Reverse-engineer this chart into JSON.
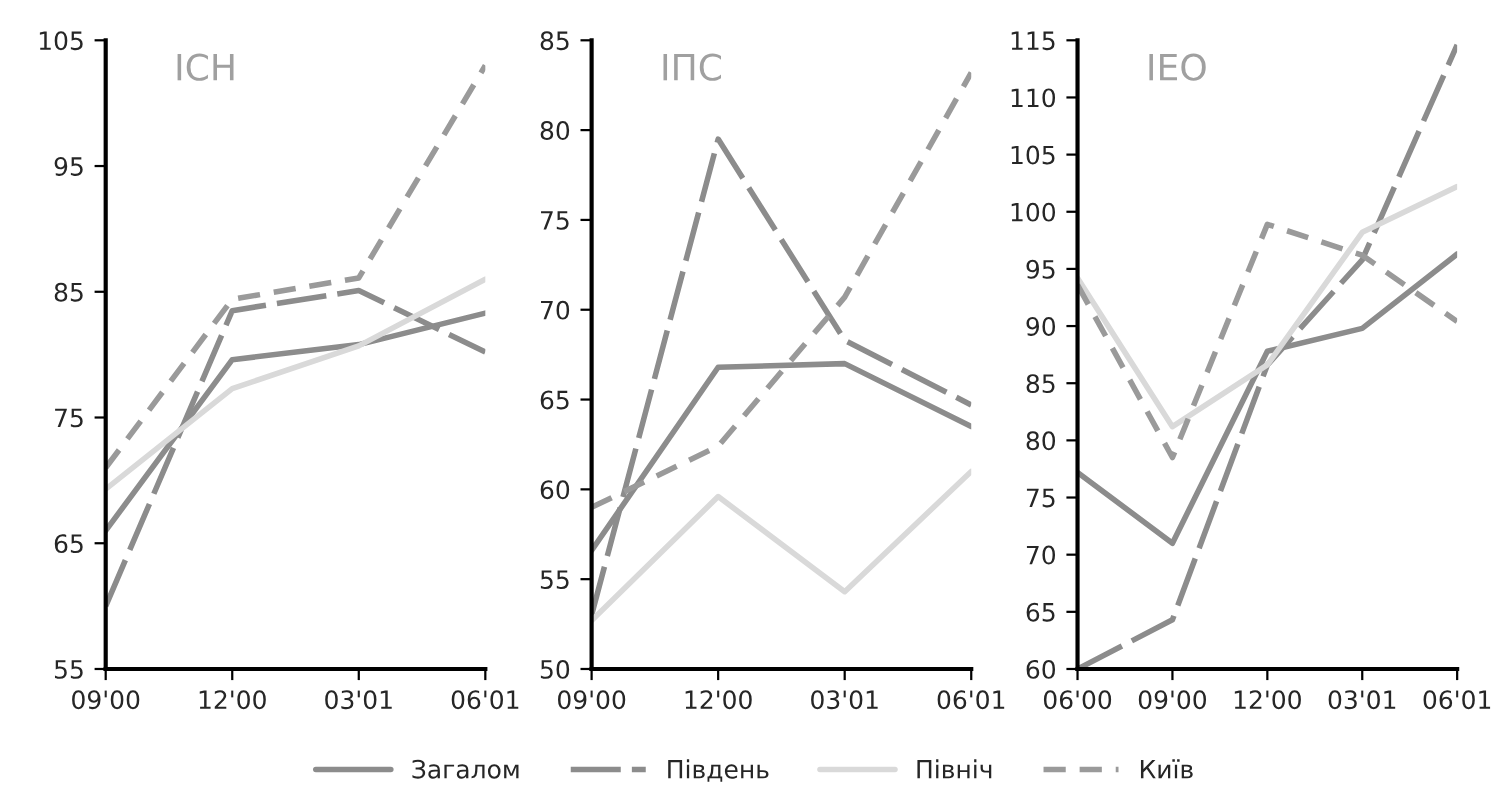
{
  "chart_data": [
    {
      "type": "line",
      "title": "ІСН",
      "categories": [
        "09'00",
        "12'00",
        "03'01",
        "06'01"
      ],
      "ylim": [
        55,
        105
      ],
      "yticks": [
        55,
        65,
        75,
        85,
        95,
        105
      ],
      "grid": false,
      "legend": "bottom",
      "series": [
        {
          "name": "Загалом",
          "color": "#8c8c8c",
          "line_style": "solid",
          "values": [
            66,
            79.6,
            80.8,
            83.3
          ]
        },
        {
          "name": "Південь",
          "color": "#8c8c8c",
          "line_style": "longdash",
          "values": [
            60,
            83.5,
            85.1,
            80.2
          ]
        },
        {
          "name": "Північ",
          "color": "#d9d9d9",
          "line_style": "solid",
          "values": [
            69.3,
            77.3,
            80.7,
            86
          ]
        },
        {
          "name": "Київ",
          "color": "#9a9a9a",
          "line_style": "dashed",
          "values": [
            71,
            84.4,
            86.1,
            103
          ]
        }
      ]
    },
    {
      "type": "line",
      "title": "ІПС",
      "categories": [
        "09'00",
        "12'00",
        "03'01",
        "06'01"
      ],
      "ylim": [
        50,
        85
      ],
      "yticks": [
        50,
        55,
        60,
        65,
        70,
        75,
        80,
        85
      ],
      "grid": false,
      "legend": "bottom",
      "series": [
        {
          "name": "Загалом",
          "color": "#8c8c8c",
          "line_style": "solid",
          "values": [
            56.6,
            66.8,
            67,
            63.5
          ]
        },
        {
          "name": "Південь",
          "color": "#8c8c8c",
          "line_style": "longdash",
          "values": [
            53,
            79.5,
            68.3,
            64.7
          ]
        },
        {
          "name": "Північ",
          "color": "#d9d9d9",
          "line_style": "solid",
          "values": [
            52.7,
            59.6,
            54.3,
            61
          ]
        },
        {
          "name": "Київ",
          "color": "#9a9a9a",
          "line_style": "dashed",
          "values": [
            59,
            62.4,
            70.7,
            83.2
          ]
        }
      ]
    },
    {
      "type": "line",
      "title": "ІЕО",
      "categories": [
        "06'00",
        "09'00",
        "12'00",
        "03'01",
        "06'01"
      ],
      "ylim": [
        60,
        115
      ],
      "yticks": [
        60,
        65,
        70,
        75,
        80,
        85,
        90,
        95,
        100,
        105,
        110,
        115
      ],
      "grid": false,
      "legend": "bottom",
      "series": [
        {
          "name": "Загалом",
          "color": "#8c8c8c",
          "line_style": "solid",
          "values": [
            77.2,
            71,
            87.8,
            89.8,
            96.3
          ]
        },
        {
          "name": "Південь",
          "color": "#8c8c8c",
          "line_style": "longdash",
          "values": [
            60,
            64.3,
            86.6,
            95.8,
            114.6
          ]
        },
        {
          "name": "Північ",
          "color": "#d9d9d9",
          "line_style": "solid",
          "values": [
            94.2,
            81.2,
            86.6,
            98.2,
            102.2
          ]
        },
        {
          "name": "Київ",
          "color": "#9a9a9a",
          "line_style": "dashed",
          "values": [
            93.6,
            78.5,
            98.9,
            96.2,
            90.4
          ]
        }
      ]
    }
  ]
}
